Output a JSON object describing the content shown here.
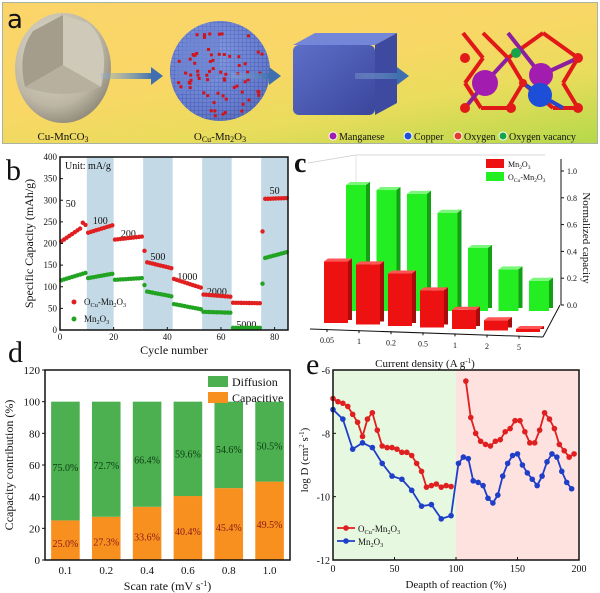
{
  "panel_a": {
    "label": "a",
    "stages": [
      "Cu-MnCO3",
      "OCu-Mn2O3"
    ],
    "stage_labels_rich": [
      {
        "main": "Cu-MnCO",
        "sub": "3",
        "tail": ""
      },
      {
        "main": "O",
        "sub": "Cu",
        "tail": "-Mn",
        "sub2": "2",
        "tail2": "O",
        "sub3": "3"
      }
    ],
    "legend": [
      {
        "label": "Manganese",
        "color": "#a21caf"
      },
      {
        "label": "Copper",
        "color": "#1d4ed8"
      },
      {
        "label": "Oxygen",
        "color": "#e23b2e"
      },
      {
        "label": "Oxygen vacancy",
        "color": "#16a34a"
      }
    ]
  },
  "chart_data": [
    {
      "id": "b",
      "panel_label": "b",
      "type": "scatter",
      "xlabel": "Cycle number",
      "ylabel": "Specific Capacity (mAh/g)",
      "xlim": [
        0,
        85
      ],
      "ylim": [
        0,
        400
      ],
      "xticks": [
        0,
        20,
        40,
        60,
        80
      ],
      "yticks": [
        0,
        50,
        100,
        150,
        200,
        250,
        300,
        350,
        400
      ],
      "unit_note": "Unit: mA/g",
      "rate_segments": [
        {
          "label": "50",
          "start": 0,
          "end": 10,
          "shaded": false
        },
        {
          "label": "100",
          "start": 10,
          "end": 20,
          "shaded": true
        },
        {
          "label": "200",
          "start": 20,
          "end": 31,
          "shaded": false
        },
        {
          "label": "500",
          "start": 31,
          "end": 42,
          "shaded": true
        },
        {
          "label": "1000",
          "start": 42,
          "end": 53,
          "shaded": false
        },
        {
          "label": "2000",
          "start": 53,
          "end": 64,
          "shaded": true
        },
        {
          "label": "5000",
          "start": 64,
          "end": 75,
          "shaded": false
        },
        {
          "label": "50",
          "start": 75,
          "end": 85,
          "shaded": true
        }
      ],
      "series": [
        {
          "name": "OCu-Mn2O3",
          "color": "#e02020",
          "segments": [
            [
              205,
              243
            ],
            [
              225,
              242
            ],
            [
              209,
              216
            ],
            [
              158,
              143
            ],
            [
              118,
              98
            ],
            [
              82,
              77
            ],
            [
              63,
              62
            ],
            [
              303,
              305
            ]
          ],
          "first_point_spikes": {
            "21": 222,
            "31": 183,
            "75": 228
          }
        },
        {
          "name": "Mn2O3",
          "color": "#22a322",
          "segments": [
            [
              115,
              132
            ],
            [
              120,
              130
            ],
            [
              116,
              120
            ],
            [
              90,
              78
            ],
            [
              60,
              48
            ],
            [
              42,
              40
            ],
            [
              5,
              5
            ],
            [
              165,
              180
            ]
          ],
          "first_point_spikes": {
            "31": 104,
            "75": 107
          }
        }
      ],
      "legend": [
        "OCu-Mn2O3",
        "Mn2O3"
      ]
    },
    {
      "id": "c",
      "panel_label": "c",
      "type": "bar",
      "subtype": "3d-grouped",
      "categories": [
        "0.05",
        "1",
        "0.2",
        "0.5",
        "1",
        "2",
        "5"
      ],
      "xlabel": "Current density (A g-1)",
      "ylabel": "Normalized capacity",
      "ylim": [
        0,
        1.0
      ],
      "yticks": [
        0.0,
        0.2,
        0.4,
        0.6,
        0.8,
        1.0
      ],
      "series": [
        {
          "name": "Mn2O3",
          "color": "#ee1111",
          "values": [
            0.48,
            0.47,
            0.41,
            0.29,
            0.15,
            0.08,
            0.01
          ]
        },
        {
          "name": "OCu-Mn2O3",
          "color": "#22ee22",
          "values": [
            1.0,
            0.96,
            0.93,
            0.78,
            0.5,
            0.33,
            0.24
          ]
        }
      ],
      "legend": [
        "Mn2O3",
        "OCu-Mn2O3"
      ]
    },
    {
      "id": "d",
      "panel_label": "d",
      "type": "bar",
      "subtype": "stacked",
      "categories": [
        "0.1",
        "0.2",
        "0.4",
        "0.6",
        "0.8",
        "1.0"
      ],
      "xlabel": "Scan rate (mV s-1)",
      "ylabel": "Ccapacity contribution (%)",
      "ylim": [
        0,
        120
      ],
      "yticks": [
        0,
        20,
        40,
        60,
        80,
        100,
        120
      ],
      "series": [
        {
          "name": "Capacitive",
          "color": "#f7901e",
          "values": [
            25.0,
            27.3,
            33.6,
            40.4,
            45.4,
            49.5
          ],
          "labels": [
            "25.0%",
            "27.3%",
            "33.6%",
            "40.4%",
            "45.4%",
            "49.5%"
          ],
          "label_color": "#8b1a1a"
        },
        {
          "name": "Diffusion",
          "color": "#4caf50",
          "values": [
            75.0,
            72.7,
            66.4,
            59.6,
            54.6,
            50.5
          ],
          "labels": [
            "75.0%",
            "72.7%",
            "66.4%",
            "59.6%",
            "54.6%",
            "50.5%"
          ],
          "label_color": "#0b3d12"
        }
      ],
      "legend": [
        "Diffusion",
        "Capacitive"
      ],
      "legend_position": "top-right"
    },
    {
      "id": "e",
      "panel_label": "e",
      "type": "line",
      "xlabel": "Deapth of reaction (%)",
      "ylabel": "log D (cm2 s-1)",
      "xlim": [
        0,
        200
      ],
      "ylim": [
        -12,
        -6
      ],
      "xticks": [
        0,
        50,
        100,
        150,
        200
      ],
      "yticks": [
        -12,
        -10,
        -8,
        -6
      ],
      "regions": [
        {
          "from": 0,
          "to": 100,
          "color": "#e6f8e0"
        },
        {
          "from": 100,
          "to": 200,
          "color": "#fde2df"
        }
      ],
      "series": [
        {
          "name": "OCu-Mn2O3",
          "color": "#e02020",
          "x": [
            0,
            4,
            8,
            12,
            16,
            20,
            24,
            28,
            32,
            36,
            40,
            44,
            48,
            52,
            56,
            60,
            64,
            68,
            72,
            76,
            80,
            84,
            88,
            92,
            96,
            108,
            112,
            116,
            120,
            124,
            128,
            132,
            136,
            140,
            144,
            148,
            152,
            156,
            160,
            164,
            168,
            172,
            176,
            180,
            184,
            188,
            192,
            196
          ],
          "y": [
            -6.9,
            -7.0,
            -7.05,
            -7.15,
            -7.4,
            -7.65,
            -8.1,
            -7.55,
            -7.35,
            -7.9,
            -8.4,
            -8.45,
            -8.45,
            -8.5,
            -8.6,
            -8.6,
            -8.7,
            -8.95,
            -9.2,
            -9.7,
            -9.65,
            -9.6,
            -9.7,
            -9.65,
            -9.68,
            -6.35,
            -7.5,
            -8.0,
            -8.25,
            -8.35,
            -8.4,
            -8.25,
            -8.2,
            -7.95,
            -7.85,
            -7.6,
            -7.6,
            -7.95,
            -8.3,
            -8.3,
            -7.9,
            -7.35,
            -7.55,
            -7.85,
            -8.35,
            -8.55,
            -8.75,
            -8.65
          ]
        },
        {
          "name": "Mn2O3",
          "color": "#1f3fc8",
          "x": [
            0,
            8,
            16,
            24,
            32,
            40,
            48,
            56,
            64,
            72,
            80,
            88,
            96,
            102,
            106,
            110,
            114,
            118,
            122,
            126,
            130,
            134,
            138,
            142,
            146,
            150,
            154,
            158,
            162,
            166,
            170,
            174,
            178,
            182,
            186,
            190,
            194
          ],
          "y": [
            -7.25,
            -7.55,
            -8.5,
            -8.3,
            -8.45,
            -8.95,
            -9.35,
            -9.45,
            -9.8,
            -10.3,
            -10.25,
            -10.7,
            -10.6,
            -8.95,
            -8.75,
            -8.8,
            -9.5,
            -9.55,
            -9.65,
            -10.05,
            -10.2,
            -9.95,
            -9.35,
            -8.95,
            -8.7,
            -8.65,
            -9.0,
            -9.25,
            -9.45,
            -9.65,
            -9.35,
            -8.9,
            -8.65,
            -8.75,
            -9.2,
            -9.55,
            -9.75
          ]
        }
      ],
      "legend": [
        "OCu-Mn2O3",
        "Mn2O3"
      ],
      "legend_position": "bottom-left"
    }
  ]
}
